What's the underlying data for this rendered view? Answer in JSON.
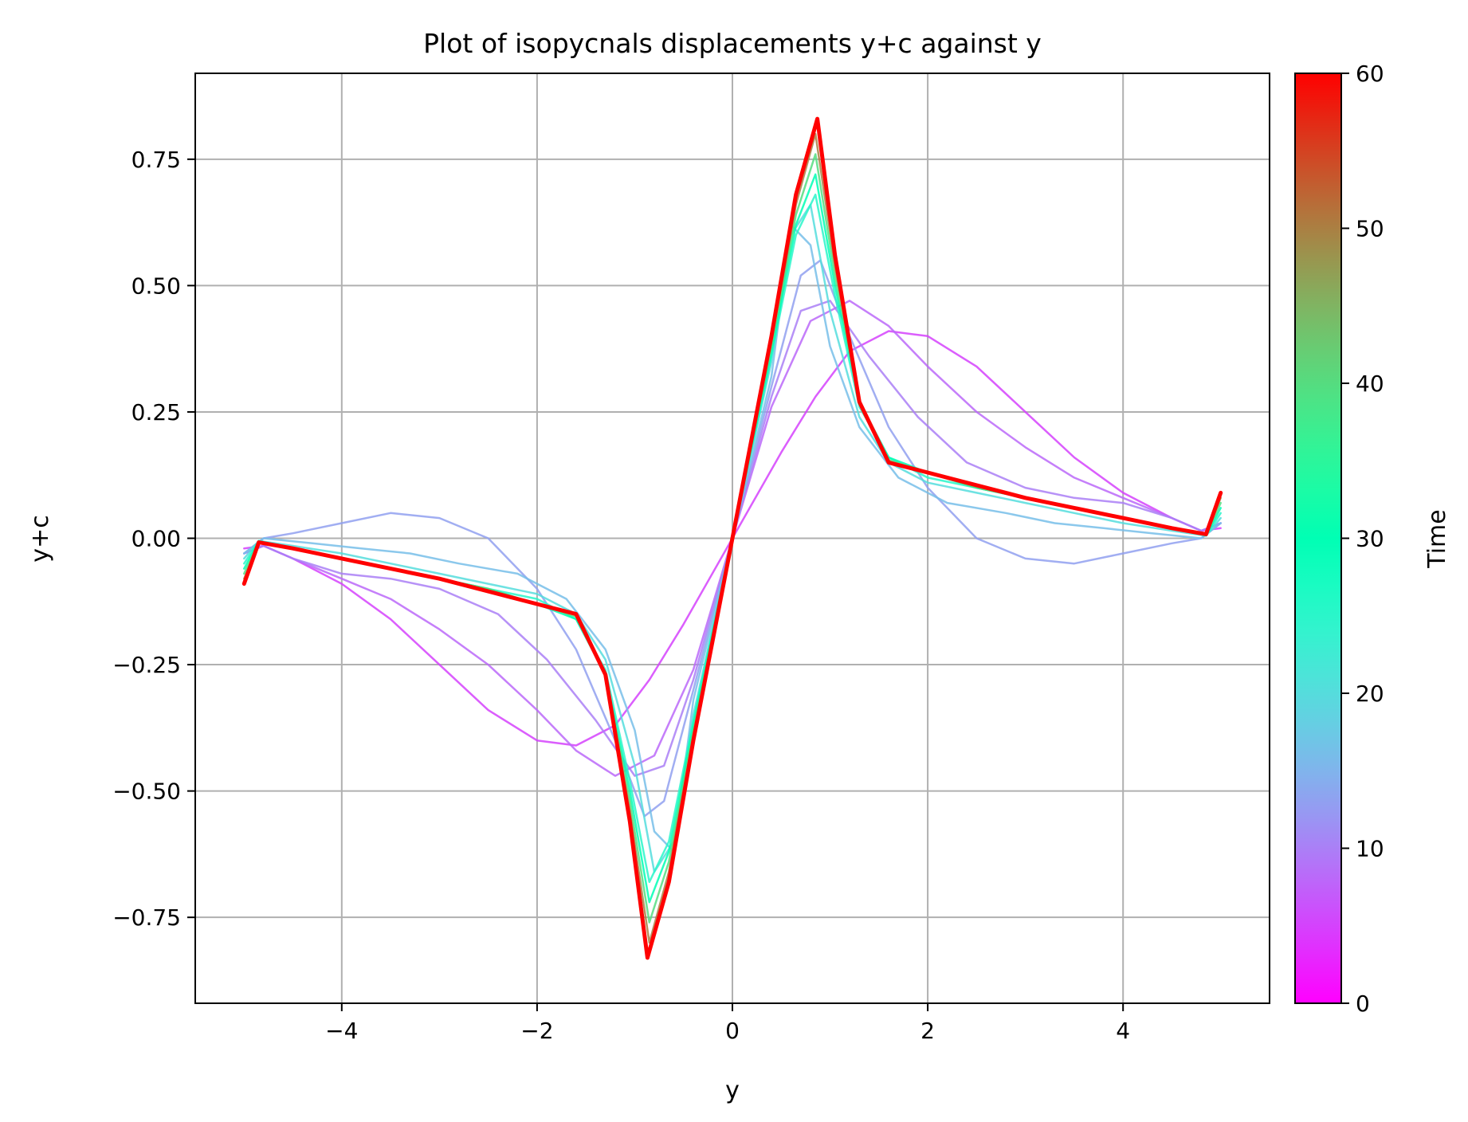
{
  "chart_data": {
    "type": "line",
    "title": "Plot of isopycnals displacements y+c against y",
    "xlabel": "y",
    "ylabel": "y+c",
    "xlim": [
      -5.5,
      5.5
    ],
    "ylim": [
      -0.92,
      0.92
    ],
    "grid": true,
    "x_ticks": [
      -4,
      -2,
      0,
      2,
      4
    ],
    "x_tick_labels": [
      "−4",
      "−2",
      "0",
      "2",
      "4"
    ],
    "y_ticks": [
      -0.75,
      -0.5,
      -0.25,
      0.0,
      0.25,
      0.5,
      0.75
    ],
    "y_tick_labels": [
      "−0.75",
      "−0.50",
      "−0.25",
      "0.00",
      "0.25",
      "0.50",
      "0.75"
    ],
    "colorbar": {
      "label": "Time",
      "colormap": "rainbow",
      "range": [
        0,
        60
      ],
      "ticks": [
        0,
        10,
        20,
        30,
        40,
        50,
        60
      ],
      "tick_labels": [
        "0",
        "10",
        "20",
        "30",
        "40",
        "50",
        "60"
      ]
    },
    "series": [
      {
        "time": 5,
        "x": [
          0,
          0.5,
          0.85,
          1.2,
          1.6,
          2.0,
          2.5,
          3.0,
          3.5,
          4.0,
          4.5,
          4.8,
          5.0
        ],
        "values": [
          0,
          0.17,
          0.28,
          0.37,
          0.41,
          0.4,
          0.34,
          0.25,
          0.16,
          0.09,
          0.04,
          0.015,
          0.02
        ]
      },
      {
        "time": 8,
        "x": [
          0,
          0.4,
          0.8,
          1.2,
          1.6,
          2.0,
          2.5,
          3.0,
          3.5,
          4.0,
          4.5,
          4.8,
          5.0
        ],
        "values": [
          0,
          0.26,
          0.43,
          0.47,
          0.42,
          0.34,
          0.25,
          0.18,
          0.12,
          0.08,
          0.04,
          0.015,
          0.03
        ]
      },
      {
        "time": 10,
        "x": [
          0,
          0.4,
          0.7,
          1.0,
          1.4,
          1.9,
          2.4,
          3.0,
          3.5,
          4.0,
          4.5,
          4.8,
          5.0
        ],
        "values": [
          0,
          0.28,
          0.45,
          0.47,
          0.36,
          0.24,
          0.15,
          0.1,
          0.08,
          0.07,
          0.04,
          0.015,
          0.03
        ]
      },
      {
        "time": 13,
        "x": [
          0,
          0.4,
          0.7,
          0.9,
          1.2,
          1.6,
          2.0,
          2.5,
          3.0,
          3.5,
          4.0,
          4.5,
          4.8,
          5.0
        ],
        "values": [
          0,
          0.3,
          0.52,
          0.55,
          0.4,
          0.22,
          0.1,
          0.0,
          -0.04,
          -0.05,
          -0.03,
          -0.01,
          0.0,
          0.03
        ]
      },
      {
        "time": 16,
        "x": [
          0,
          0.4,
          0.6,
          0.8,
          1.0,
          1.3,
          1.7,
          2.2,
          2.8,
          3.3,
          3.8,
          4.3,
          4.8,
          5.0
        ],
        "values": [
          0,
          0.32,
          0.62,
          0.58,
          0.38,
          0.22,
          0.12,
          0.07,
          0.05,
          0.03,
          0.02,
          0.01,
          0.0,
          0.03
        ]
      },
      {
        "time": 20,
        "x": [
          0,
          0.4,
          0.6,
          0.8,
          1.0,
          1.3,
          1.6,
          2.0,
          2.5,
          3.0,
          3.5,
          4.0,
          4.5,
          4.85,
          5.0
        ],
        "values": [
          0,
          0.35,
          0.6,
          0.66,
          0.45,
          0.24,
          0.15,
          0.11,
          0.09,
          0.07,
          0.05,
          0.03,
          0.015,
          0.005,
          0.04
        ]
      },
      {
        "time": 25,
        "x": [
          0,
          0.4,
          0.65,
          0.85,
          1.05,
          1.3,
          1.6,
          2.0,
          2.5,
          3.0,
          3.5,
          4.0,
          4.5,
          4.85,
          5.0
        ],
        "values": [
          0,
          0.36,
          0.6,
          0.68,
          0.48,
          0.26,
          0.16,
          0.12,
          0.1,
          0.08,
          0.06,
          0.04,
          0.02,
          0.005,
          0.05
        ]
      },
      {
        "time": 30,
        "x": [
          0,
          0.4,
          0.65,
          0.85,
          1.05,
          1.3,
          1.6,
          2.0,
          2.5,
          3.0,
          3.5,
          4.0,
          4.5,
          4.85,
          5.0
        ],
        "values": [
          0,
          0.37,
          0.62,
          0.72,
          0.5,
          0.27,
          0.16,
          0.13,
          0.1,
          0.08,
          0.06,
          0.04,
          0.02,
          0.006,
          0.06
        ]
      },
      {
        "time": 40,
        "x": [
          0,
          0.4,
          0.65,
          0.85,
          1.05,
          1.3,
          1.6,
          2.0,
          2.5,
          3.0,
          3.5,
          4.0,
          4.5,
          4.85,
          5.0
        ],
        "values": [
          0,
          0.38,
          0.64,
          0.76,
          0.52,
          0.27,
          0.155,
          0.13,
          0.1,
          0.08,
          0.06,
          0.04,
          0.02,
          0.007,
          0.07
        ]
      },
      {
        "time": 50,
        "x": [
          0,
          0.4,
          0.65,
          0.85,
          1.05,
          1.3,
          1.6,
          2.0,
          2.5,
          3.0,
          3.5,
          4.0,
          4.5,
          4.85,
          5.0
        ],
        "values": [
          0,
          0.39,
          0.66,
          0.8,
          0.54,
          0.27,
          0.15,
          0.13,
          0.105,
          0.08,
          0.06,
          0.04,
          0.02,
          0.008,
          0.08
        ]
      },
      {
        "time": 60,
        "x": [
          0,
          0.4,
          0.65,
          0.87,
          1.05,
          1.3,
          1.6,
          2.0,
          2.5,
          3.0,
          3.5,
          4.0,
          4.5,
          4.85,
          5.0
        ],
        "values": [
          0,
          0.4,
          0.68,
          0.83,
          0.56,
          0.27,
          0.15,
          0.13,
          0.105,
          0.08,
          0.06,
          0.04,
          0.02,
          0.008,
          0.09
        ]
      }
    ]
  }
}
